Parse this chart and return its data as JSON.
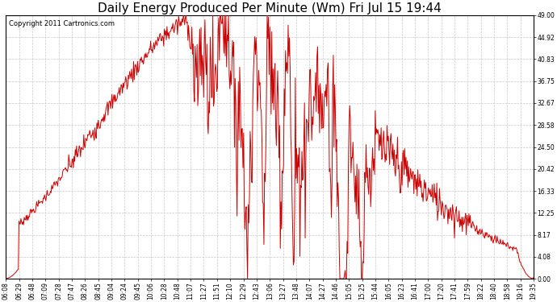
{
  "title": "Daily Energy Produced Per Minute (Wm) Fri Jul 15 19:44",
  "copyright_text": "Copyright 2011 Cartronics.com",
  "line_color": "#cc0000",
  "bg_color": "#ffffff",
  "grid_color": "#c8c8c8",
  "ylim": [
    0,
    49.0
  ],
  "yticks": [
    0.0,
    4.08,
    8.17,
    12.25,
    16.33,
    20.42,
    24.5,
    28.58,
    32.67,
    36.75,
    40.83,
    44.92,
    49.0
  ],
  "ytick_labels": [
    "0.00",
    "4.08",
    "8.17",
    "12.25",
    "16.33",
    "20.42",
    "24.50",
    "28.58",
    "32.67",
    "36.75",
    "40.83",
    "44.92",
    "49.00"
  ],
  "xtick_labels": [
    "06:08",
    "06:29",
    "06:48",
    "07:09",
    "07:28",
    "07:47",
    "08:26",
    "08:45",
    "09:04",
    "09:24",
    "09:45",
    "10:06",
    "10:28",
    "10:48",
    "11:07",
    "11:27",
    "11:51",
    "12:10",
    "12:29",
    "12:43",
    "13:06",
    "13:27",
    "13:48",
    "14:07",
    "14:27",
    "14:46",
    "15:05",
    "15:25",
    "15:44",
    "16:05",
    "16:23",
    "16:41",
    "17:00",
    "17:20",
    "17:41",
    "17:59",
    "18:22",
    "18:40",
    "18:58",
    "19:16",
    "19:35"
  ],
  "title_fontsize": 11,
  "copyright_fontsize": 6,
  "tick_fontsize": 5.5,
  "figwidth": 6.9,
  "figheight": 3.75,
  "dpi": 100
}
